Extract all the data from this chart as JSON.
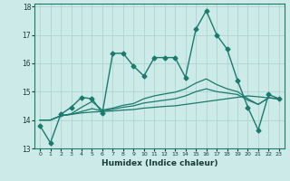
{
  "background_color": "#cceae7",
  "grid_color": "#aacfcc",
  "line_color": "#1a7a6e",
  "xlabel": "Humidex (Indice chaleur)",
  "xlim": [
    -0.5,
    23.5
  ],
  "ylim": [
    13,
    18.1
  ],
  "yticks": [
    13,
    14,
    15,
    16,
    17,
    18
  ],
  "xticks": [
    0,
    1,
    2,
    3,
    4,
    5,
    6,
    7,
    8,
    9,
    10,
    11,
    12,
    13,
    14,
    15,
    16,
    17,
    18,
    19,
    20,
    21,
    22,
    23
  ],
  "series": [
    {
      "x": [
        0,
        1,
        2,
        3,
        4,
        5,
        6,
        7,
        8,
        9,
        10,
        11,
        12,
        13,
        14,
        15,
        16,
        17,
        18,
        19,
        20,
        21,
        22,
        23
      ],
      "y": [
        13.8,
        13.2,
        14.2,
        14.45,
        14.8,
        14.75,
        14.25,
        16.35,
        16.35,
        15.9,
        15.55,
        16.2,
        16.2,
        16.2,
        15.5,
        17.2,
        17.85,
        17.0,
        16.5,
        15.4,
        14.45,
        13.65,
        14.9,
        14.75
      ],
      "marker": "D",
      "markersize": 2.5,
      "linewidth": 1.0
    },
    {
      "x": [
        0,
        1,
        2,
        3,
        4,
        5,
        6,
        7,
        8,
        9,
        10,
        11,
        12,
        13,
        14,
        15,
        16,
        17,
        18,
        19,
        20,
        21,
        22,
        23
      ],
      "y": [
        14.0,
        14.0,
        14.15,
        14.2,
        14.25,
        14.28,
        14.3,
        14.32,
        14.35,
        14.37,
        14.42,
        14.45,
        14.48,
        14.5,
        14.55,
        14.6,
        14.65,
        14.7,
        14.75,
        14.8,
        14.85,
        14.82,
        14.78,
        14.75
      ],
      "marker": null,
      "linewidth": 0.9
    },
    {
      "x": [
        0,
        1,
        2,
        3,
        4,
        5,
        6,
        7,
        8,
        9,
        10,
        11,
        12,
        13,
        14,
        15,
        16,
        17,
        18,
        19,
        20,
        21,
        22,
        23
      ],
      "y": [
        14.0,
        14.0,
        14.15,
        14.2,
        14.3,
        14.4,
        14.32,
        14.38,
        14.45,
        14.5,
        14.6,
        14.65,
        14.7,
        14.75,
        14.85,
        15.0,
        15.1,
        15.0,
        14.95,
        14.9,
        14.7,
        14.55,
        14.78,
        14.75
      ],
      "marker": null,
      "linewidth": 0.9
    },
    {
      "x": [
        0,
        1,
        2,
        3,
        4,
        5,
        6,
        7,
        8,
        9,
        10,
        11,
        12,
        13,
        14,
        15,
        16,
        17,
        18,
        19,
        20,
        21,
        22,
        23
      ],
      "y": [
        14.0,
        14.0,
        14.15,
        14.22,
        14.45,
        14.65,
        14.35,
        14.42,
        14.52,
        14.58,
        14.75,
        14.85,
        14.92,
        14.98,
        15.1,
        15.3,
        15.45,
        15.25,
        15.1,
        15.0,
        14.75,
        14.55,
        14.78,
        14.75
      ],
      "marker": null,
      "linewidth": 0.9
    }
  ]
}
